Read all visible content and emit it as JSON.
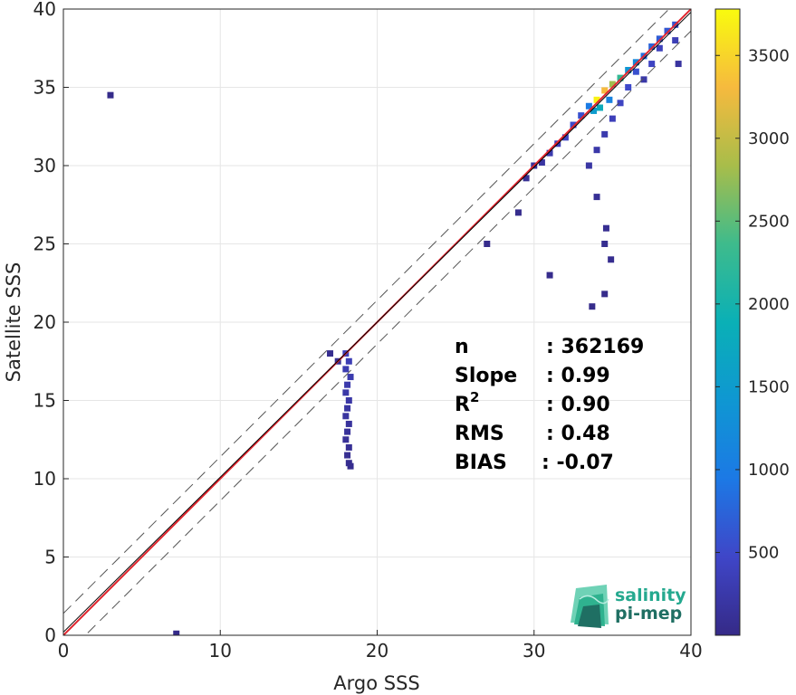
{
  "chart_data": {
    "type": "heatmap",
    "title": "",
    "xlabel": "Argo SSS",
    "ylabel": "Satellite SSS",
    "xlim": [
      0,
      40
    ],
    "ylim": [
      0,
      40
    ],
    "x_ticks": [
      "0",
      "10",
      "20",
      "30",
      "40"
    ],
    "y_ticks": [
      "0",
      "5",
      "10",
      "15",
      "20",
      "25",
      "30",
      "35",
      "40"
    ],
    "grid": true,
    "reference_lines": [
      {
        "kind": "identity",
        "slope": 1,
        "intercept": 0,
        "color": "#e0252e",
        "style": "solid"
      },
      {
        "kind": "regression",
        "slope": 0.99,
        "intercept": 0.2,
        "color": "#000000",
        "style": "solid"
      },
      {
        "kind": "upper-bound",
        "slope": 1,
        "intercept": 1.4,
        "color": "#555555",
        "style": "dashed"
      },
      {
        "kind": "lower-bound",
        "slope": 1,
        "intercept": -1.4,
        "color": "#555555",
        "style": "dashed"
      }
    ],
    "density_cells": [
      [
        34.0,
        34.2,
        3700
      ],
      [
        34.5,
        34.8,
        3200
      ],
      [
        35.0,
        35.2,
        2600
      ],
      [
        35.5,
        35.6,
        2000
      ],
      [
        34.2,
        33.7,
        1500
      ],
      [
        33.8,
        33.5,
        1200
      ],
      [
        36.0,
        36.1,
        1100
      ],
      [
        36.5,
        36.6,
        900
      ],
      [
        34.8,
        34.2,
        800
      ],
      [
        33.5,
        33.8,
        700
      ],
      [
        37.0,
        37.0,
        600
      ],
      [
        37.5,
        37.6,
        500
      ],
      [
        38.0,
        38.1,
        450
      ],
      [
        38.5,
        38.6,
        400
      ],
      [
        39.0,
        39.0,
        380
      ],
      [
        33.0,
        33.2,
        350
      ],
      [
        32.5,
        32.6,
        300
      ],
      [
        32.0,
        31.8,
        250
      ],
      [
        31.5,
        31.4,
        200
      ],
      [
        31.0,
        30.8,
        150
      ],
      [
        36.0,
        35.0,
        300
      ],
      [
        35.5,
        34.0,
        250
      ],
      [
        35.0,
        33.0,
        200
      ],
      [
        34.5,
        32.0,
        150
      ],
      [
        34.0,
        31.0,
        120
      ],
      [
        33.5,
        30.0,
        100
      ],
      [
        36.5,
        36.0,
        350
      ],
      [
        37.5,
        36.5,
        250
      ],
      [
        38.0,
        37.5,
        220
      ],
      [
        39.0,
        38.0,
        180
      ],
      [
        39.2,
        36.5,
        80
      ],
      [
        37.0,
        35.5,
        120
      ],
      [
        30.5,
        30.2,
        90
      ],
      [
        30.0,
        30.0,
        60
      ],
      [
        29.5,
        29.2,
        40
      ],
      [
        34.0,
        28.0,
        40
      ],
      [
        34.6,
        26.0,
        30
      ],
      [
        34.5,
        25.0,
        25
      ],
      [
        34.9,
        24.0,
        20
      ],
      [
        29.0,
        27.0,
        15
      ],
      [
        27.0,
        25.0,
        10
      ],
      [
        31.0,
        23.0,
        10
      ],
      [
        33.7,
        21.0,
        8
      ],
      [
        34.5,
        21.8,
        8
      ],
      [
        18.0,
        18.0,
        200
      ],
      [
        18.2,
        17.5,
        180
      ],
      [
        18.0,
        17.0,
        160
      ],
      [
        18.3,
        16.5,
        150
      ],
      [
        18.1,
        16.0,
        140
      ],
      [
        18.0,
        15.5,
        120
      ],
      [
        18.2,
        15.0,
        110
      ],
      [
        18.1,
        14.5,
        90
      ],
      [
        18.0,
        14.0,
        80
      ],
      [
        18.2,
        13.5,
        70
      ],
      [
        18.1,
        13.0,
        60
      ],
      [
        18.0,
        12.5,
        50
      ],
      [
        18.2,
        12.0,
        40
      ],
      [
        18.1,
        11.5,
        30
      ],
      [
        18.2,
        11.0,
        25
      ],
      [
        18.3,
        10.8,
        20
      ],
      [
        17.5,
        17.5,
        30
      ],
      [
        17.0,
        18.0,
        20
      ],
      [
        3.0,
        34.5,
        5
      ],
      [
        7.2,
        0.1,
        5
      ]
    ],
    "colorbar": {
      "colormap": "parula",
      "min": 0,
      "max": 3780,
      "ticks": [
        "500",
        "1000",
        "1500",
        "2000",
        "2500",
        "3000",
        "3500"
      ]
    },
    "statistics": [
      {
        "label": "n",
        "value": ": 362169"
      },
      {
        "label": "Slope",
        "value": ": 0.99"
      },
      {
        "label": "R",
        "superscript": "2",
        "value": ": 0.90"
      },
      {
        "label": "RMS",
        "value": ": 0.48"
      },
      {
        "label": "BIAS",
        "value": ": -0.07"
      }
    ]
  },
  "logo": {
    "line1": "salinity",
    "line2": "pi-mep",
    "color_primary": "#25a98f",
    "color_secondary": "#1f6f63"
  }
}
